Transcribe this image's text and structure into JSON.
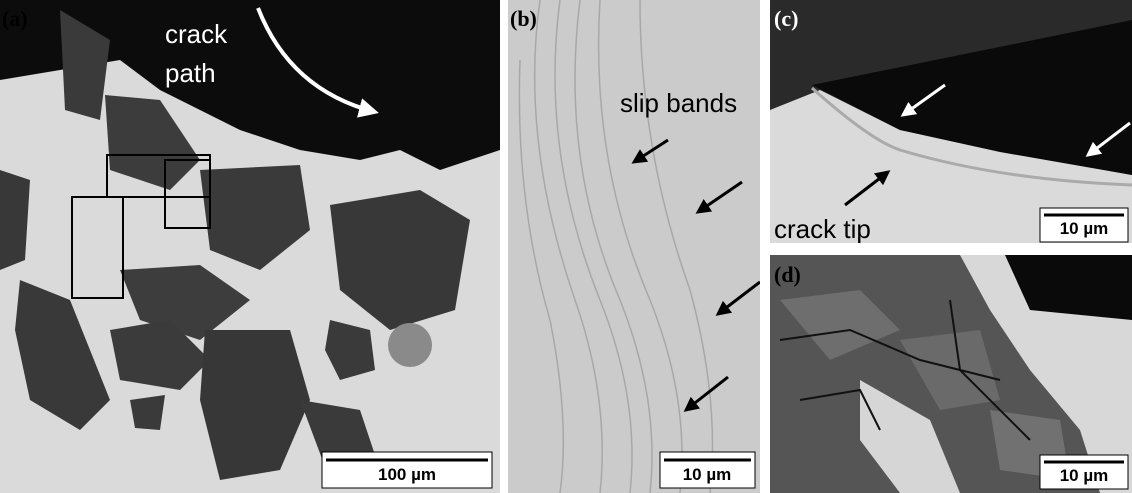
{
  "panels": [
    {
      "label": "(a)",
      "annotation": [
        "crack",
        "path"
      ],
      "scale_bar": "100 µm"
    },
    {
      "label": "(b)",
      "annotation": [
        "slip bands"
      ],
      "scale_bar": "10 µm"
    },
    {
      "label": "(c)",
      "annotation": [
        "crack tip"
      ],
      "scale_bar": "10 µm"
    },
    {
      "label": "(d)",
      "annotation": [],
      "scale_bar": "10 µm"
    }
  ]
}
